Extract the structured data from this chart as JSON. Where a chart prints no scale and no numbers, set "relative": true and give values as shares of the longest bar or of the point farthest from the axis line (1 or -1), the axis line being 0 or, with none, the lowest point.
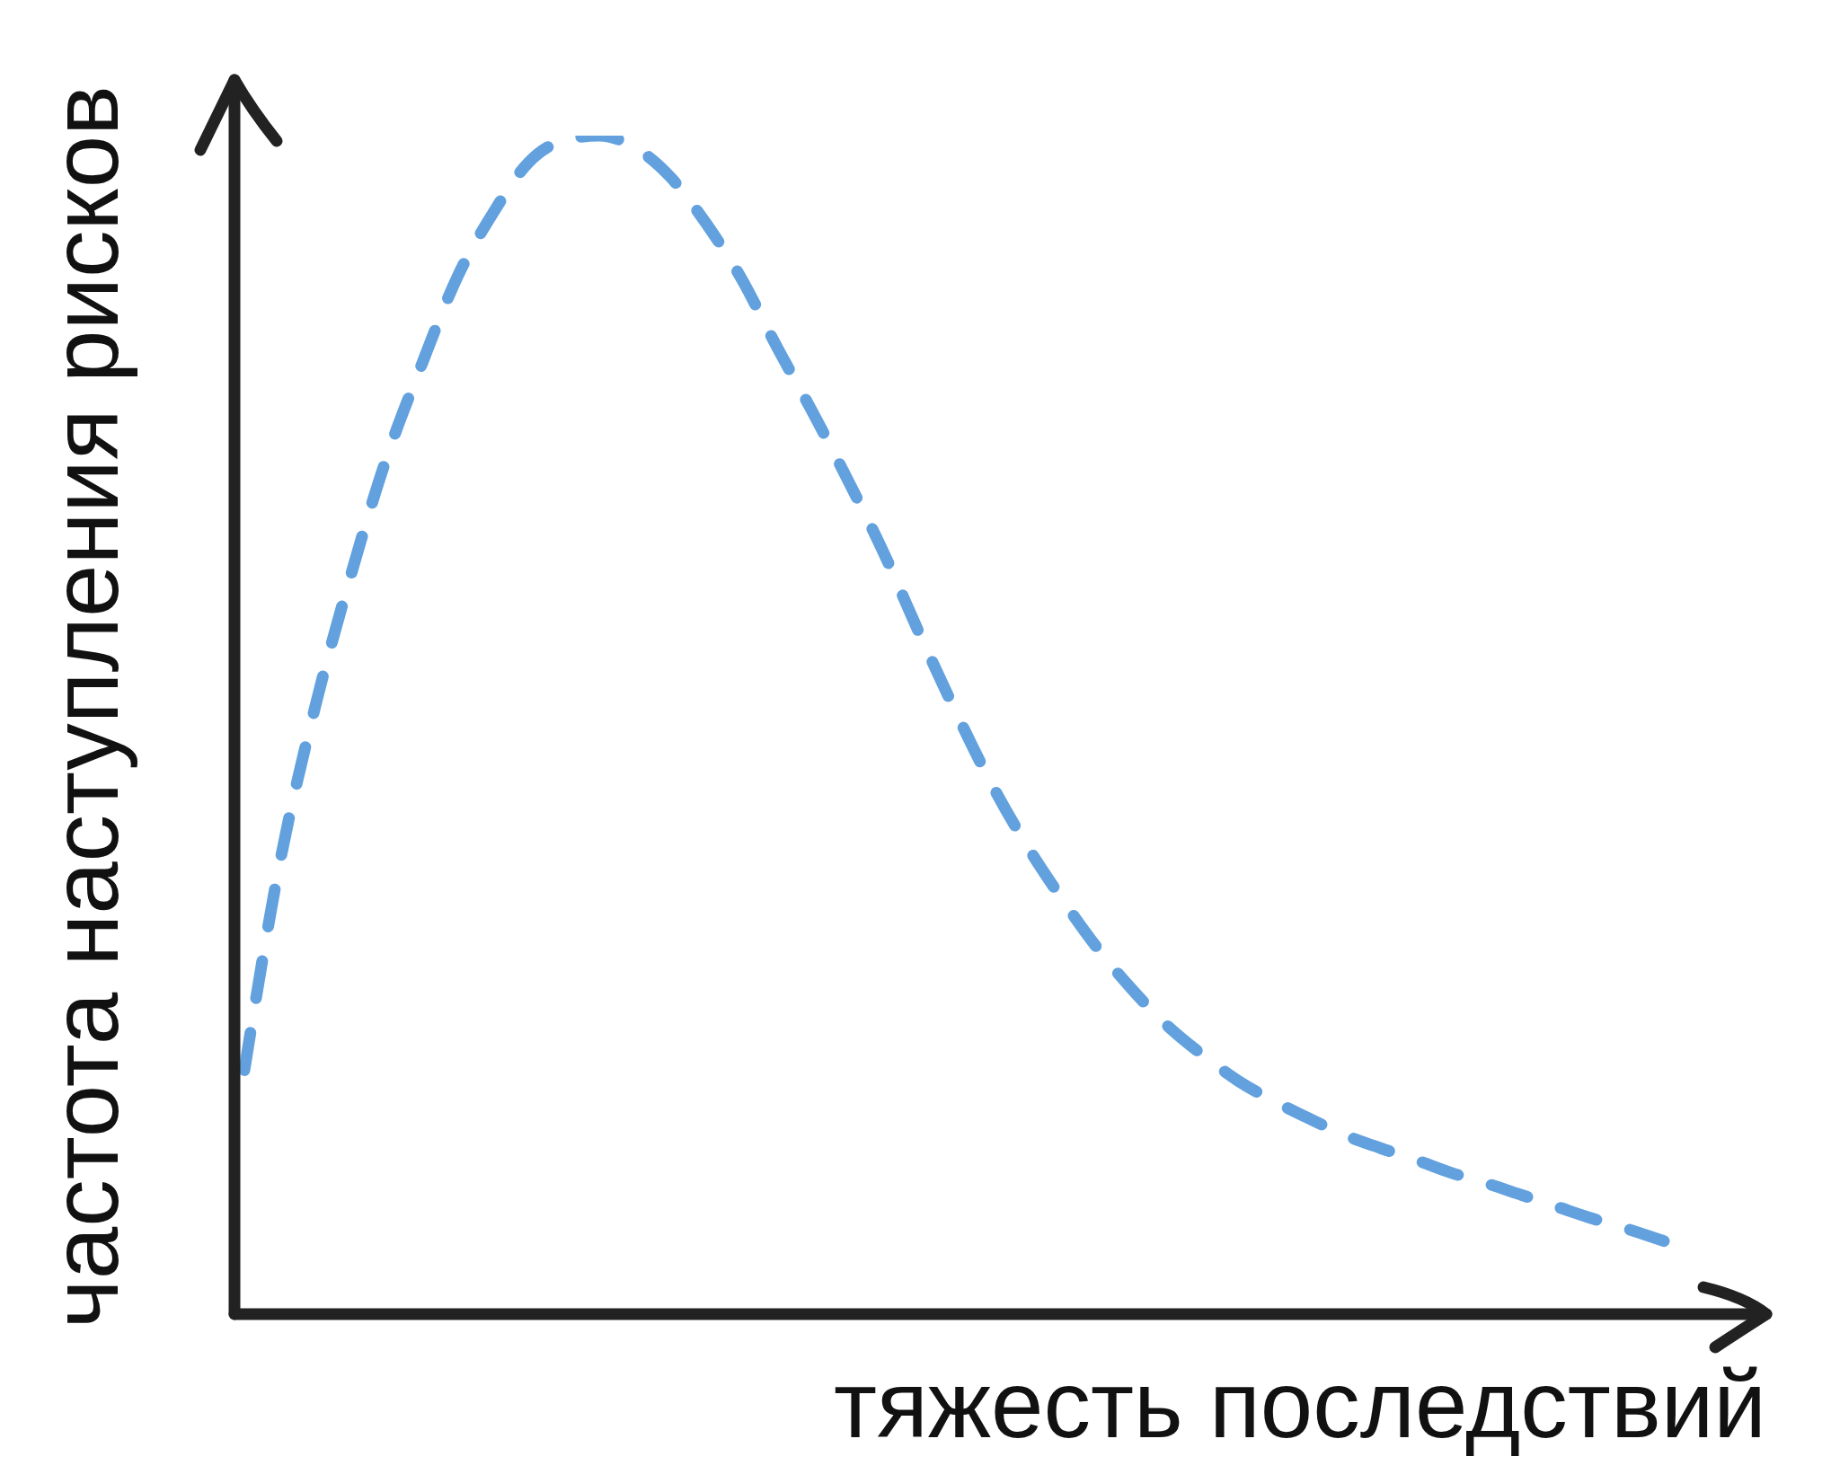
{
  "chart_data": {
    "type": "line",
    "xlabel": "тяжесть последствий",
    "ylabel": "частота наступления рисков",
    "relative": true,
    "categories": [
      null,
      null,
      null,
      null,
      null,
      null,
      null,
      null,
      null,
      null,
      null,
      null,
      null,
      null,
      null,
      null,
      null,
      null,
      null,
      null,
      null,
      null,
      null,
      null,
      null,
      null,
      null,
      null,
      null,
      null,
      null,
      null,
      null,
      null,
      null,
      null,
      null,
      null,
      null,
      null,
      null
    ],
    "values": [
      0.207,
      0.383,
      0.516,
      0.627,
      0.726,
      0.806,
      0.88,
      0.934,
      0.977,
      0.996,
      1,
      0.99,
      0.965,
      0.926,
      0.879,
      0.821,
      0.766,
      0.708,
      0.647,
      0.579,
      0.514,
      0.453,
      0.4,
      0.354,
      0.312,
      0.276,
      0.245,
      0.22,
      0.198,
      0.181,
      0.166,
      0.152,
      0.141,
      0.131,
      0.12,
      0.111,
      0.101,
      0.091,
      0.081,
      0.072,
      0.062
    ],
    "color": "#62a1de",
    "line_style": "dashed",
    "marker": "none"
  }
}
